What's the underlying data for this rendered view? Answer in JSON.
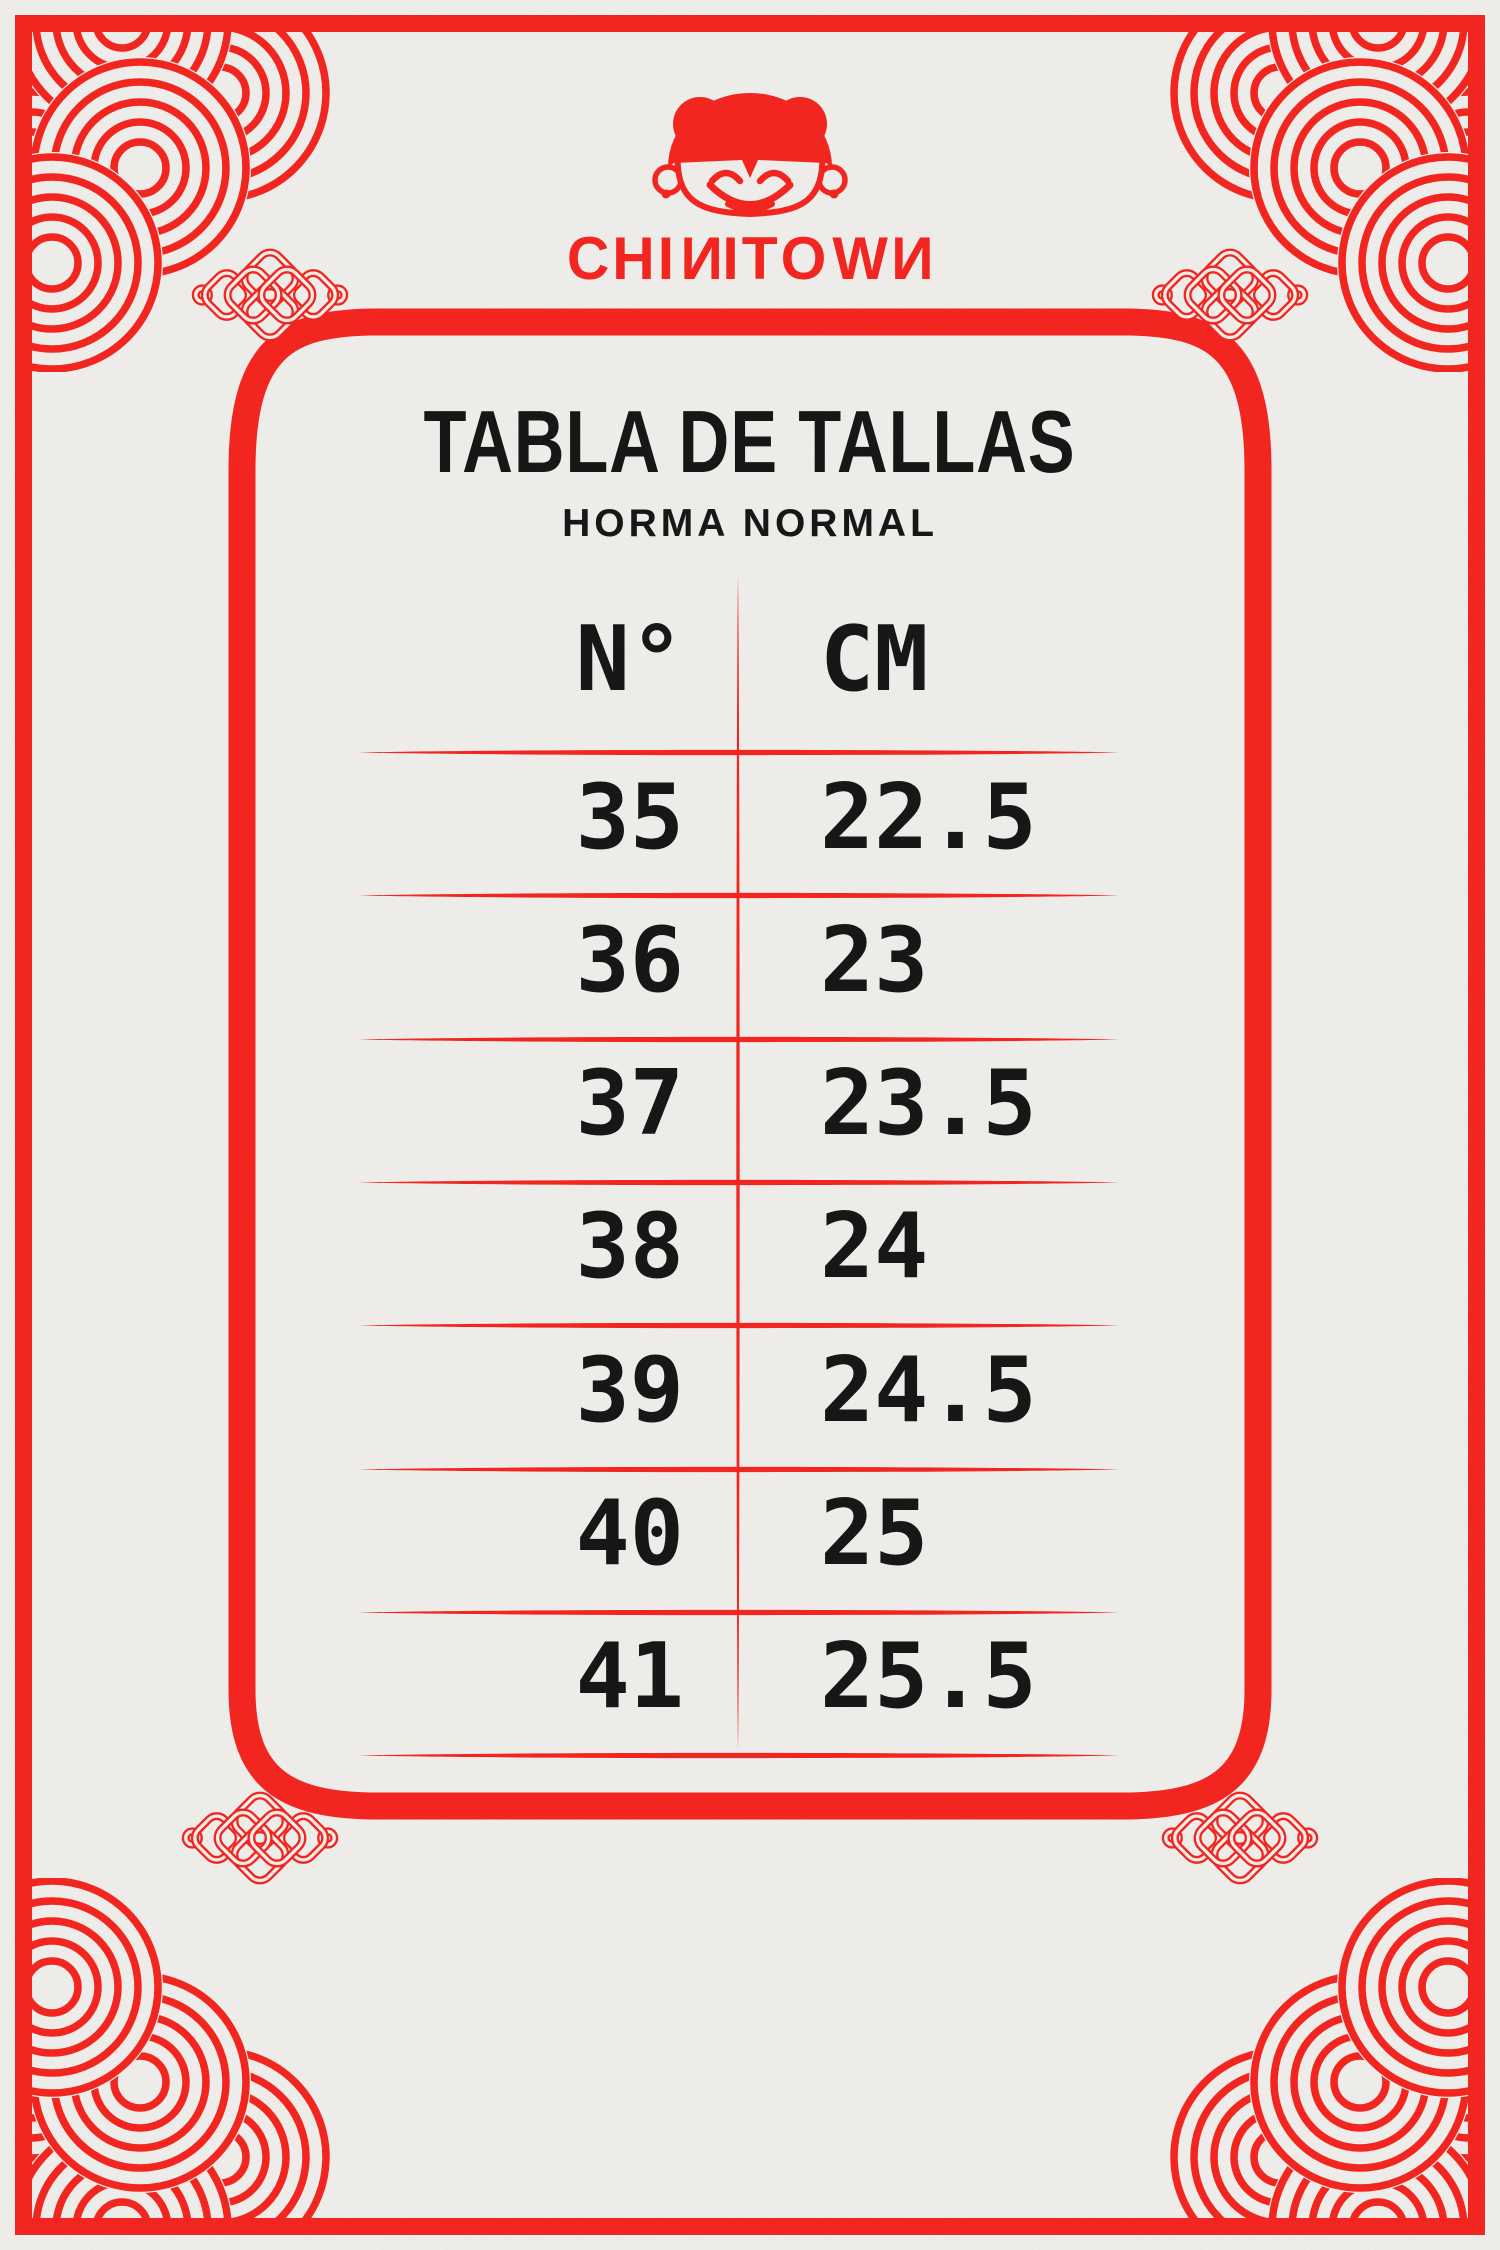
{
  "brand": {
    "wordmark": "CHINITOWN"
  },
  "header": {
    "title": "TABLA DE TALLAS",
    "subtitle": "HORMA NORMAL"
  },
  "size_table": {
    "headers": [
      "N°",
      "CM"
    ],
    "rows": [
      [
        "35",
        "22.5"
      ],
      [
        "36",
        "23"
      ],
      [
        "37",
        "23.5"
      ],
      [
        "38",
        "24"
      ],
      [
        "39",
        "24.5"
      ],
      [
        "40",
        "25"
      ],
      [
        "41",
        "25.5"
      ]
    ]
  },
  "chart_data": {
    "type": "table",
    "title": "TABLA DE TALLAS",
    "subtitle": "HORMA NORMAL",
    "columns": [
      "N°",
      "CM"
    ],
    "rows": [
      [
        35,
        22.5
      ],
      [
        36,
        23
      ],
      [
        37,
        23.5
      ],
      [
        38,
        24
      ],
      [
        39,
        24.5
      ],
      [
        40,
        25
      ],
      [
        41,
        25.5
      ]
    ]
  },
  "colors": {
    "red": "#F5231D",
    "paper": "#F0EFEC",
    "ink": "#141414"
  },
  "icons": {
    "logo": "girl-face-with-buns-icon",
    "corner_pattern": "seigaiha-wave-icon",
    "ornament": "endless-knot-icon"
  }
}
